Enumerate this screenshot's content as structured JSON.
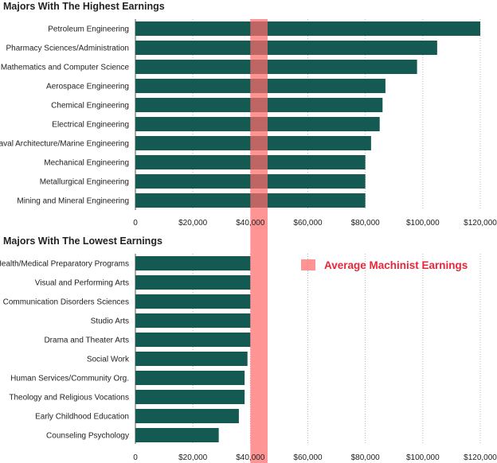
{
  "colors": {
    "bar": "#145a52",
    "band": "#ff6b6b",
    "legend_text": "#e8283a",
    "grid": "#b8b8b8"
  },
  "chart_data": [
    {
      "type": "bar",
      "orientation": "horizontal",
      "title": "Majors With The Highest Earnings",
      "categories": [
        "Petroleum Engineering",
        "Pharmacy Sciences/Administration",
        "Mathematics and Computer Science",
        "Aerospace Engineering",
        "Chemical Engineering",
        "Electrical Engineering",
        "Naval Architecture/Marine Engineering",
        "Mechanical Engineering",
        "Metallurgical Engineering",
        "Mining and Mineral Engineering"
      ],
      "values": [
        120000,
        105000,
        98000,
        87000,
        86000,
        85000,
        82000,
        80000,
        80000,
        80000
      ],
      "xlim": [
        0,
        120000
      ],
      "ticks": [
        "0",
        "$20,000",
        "$40,000",
        "$60,000",
        "$80,000",
        "$100,000",
        "$120,000"
      ],
      "grid": true
    },
    {
      "type": "bar",
      "orientation": "horizontal",
      "title": "Majors With The Lowest  Earnings",
      "categories": [
        "Health/Medical Preparatory Programs",
        "Visual and Performing Arts",
        "Communication Disorders Sciences",
        "Studio Arts",
        "Drama and Theater Arts",
        "Social Work",
        "Human Services/Community Org.",
        "Theology and Religious Vocations",
        "Early Childhood Education",
        "Counseling Psychology"
      ],
      "values": [
        40000,
        40000,
        40000,
        40000,
        40000,
        39000,
        38000,
        38000,
        36000,
        29000
      ],
      "xlim": [
        0,
        120000
      ],
      "ticks": [
        "0",
        "$20,000",
        "$40,000",
        "$60,000",
        "$80,000",
        "$100,000",
        "$120,000"
      ],
      "grid": true
    }
  ],
  "reference_band": {
    "label": "Average Machinist Earnings",
    "from": 40000,
    "to": 46000
  }
}
